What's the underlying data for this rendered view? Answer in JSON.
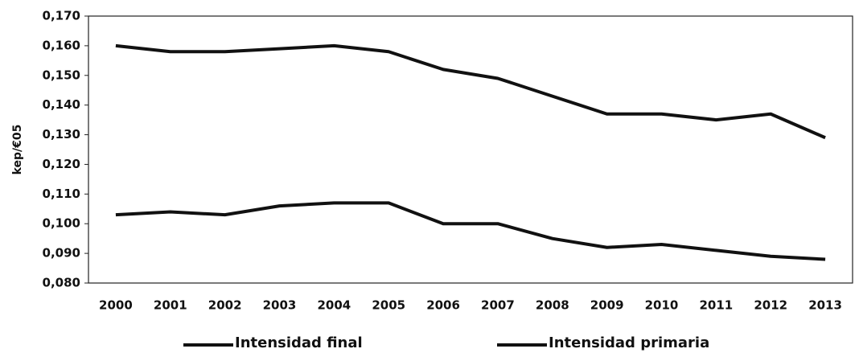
{
  "chart_data": {
    "type": "line",
    "y_label": "kep/€05",
    "categories": [
      "2000",
      "2001",
      "2002",
      "2003",
      "2004",
      "2005",
      "2006",
      "2007",
      "2008",
      "2009",
      "2010",
      "2011",
      "2012",
      "2013"
    ],
    "series": [
      {
        "name": "Intensidad final",
        "color": "#111111",
        "values": [
          0.103,
          0.104,
          0.103,
          0.106,
          0.107,
          0.107,
          0.1,
          0.1,
          0.095,
          0.092,
          0.093,
          0.091,
          0.089,
          0.088
        ]
      },
      {
        "name": "Intensidad primaria",
        "color": "#111111",
        "values": [
          0.16,
          0.158,
          0.158,
          0.159,
          0.16,
          0.158,
          0.152,
          0.149,
          0.143,
          0.137,
          0.137,
          0.135,
          0.137,
          0.129
        ]
      }
    ],
    "ylim": [
      0.08,
      0.17
    ],
    "yticks": [
      {
        "value": 0.08,
        "label": "0,080"
      },
      {
        "value": 0.09,
        "label": "0,090"
      },
      {
        "value": 0.1,
        "label": "0,100"
      },
      {
        "value": 0.11,
        "label": "0,110"
      },
      {
        "value": 0.12,
        "label": "0,120"
      },
      {
        "value": 0.13,
        "label": "0,130"
      },
      {
        "value": 0.14,
        "label": "0,140"
      },
      {
        "value": 0.15,
        "label": "0,150"
      },
      {
        "value": 0.16,
        "label": "0,160"
      },
      {
        "value": 0.17,
        "label": "0,170"
      }
    ],
    "legend": "bottom"
  }
}
